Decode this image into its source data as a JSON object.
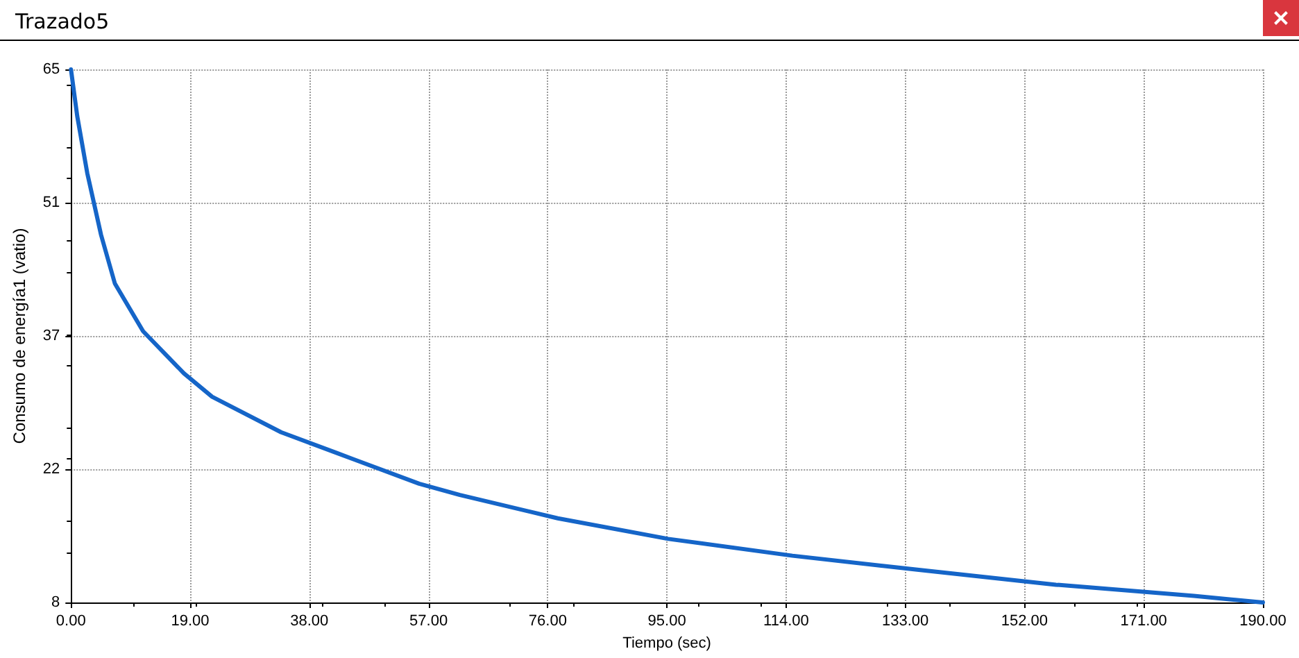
{
  "chart_data": {
    "type": "line",
    "title": "Trazado5",
    "xlabel": "Tiempo (sec)",
    "ylabel": "Consumo de energía1 (vatio)",
    "x": [
      0,
      1,
      2.6,
      4.8,
      7,
      11.5,
      18,
      22.5,
      33.5,
      42.3,
      55.5,
      62,
      77.6,
      95.2,
      115,
      134.9,
      157,
      179,
      190
    ],
    "series": [
      {
        "color": "#1565c8",
        "values": [
          65,
          60,
          53.9,
          47.3,
          42.1,
          37,
          32.5,
          30,
          26.2,
          24,
          20.7,
          19.5,
          17,
          14.8,
          13,
          11.5,
          9.9,
          8.7,
          8
        ]
      }
    ],
    "xlim": [
      0,
      190
    ],
    "xticks": [
      {
        "value": 0,
        "label": "0.00"
      },
      {
        "value": 19,
        "label": "19.00"
      },
      {
        "value": 38,
        "label": "38.00"
      },
      {
        "value": 57,
        "label": "57.00"
      },
      {
        "value": 76,
        "label": "76.00"
      },
      {
        "value": 95,
        "label": "95.00"
      },
      {
        "value": 114,
        "label": "114.00"
      },
      {
        "value": 133,
        "label": "133.00"
      },
      {
        "value": 152,
        "label": "152.00"
      },
      {
        "value": 171,
        "label": "171.00"
      },
      {
        "value": 190,
        "label": "190.00"
      }
    ],
    "ylim": [
      8,
      65
    ],
    "yticks": [
      {
        "value": 8,
        "label": "8"
      },
      {
        "value": 22.25,
        "label": "22"
      },
      {
        "value": 36.5,
        "label": "37"
      },
      {
        "value": 50.75,
        "label": "51"
      },
      {
        "value": 65,
        "label": "65"
      }
    ],
    "grid": true,
    "marker": "none",
    "line_style": "solid"
  }
}
